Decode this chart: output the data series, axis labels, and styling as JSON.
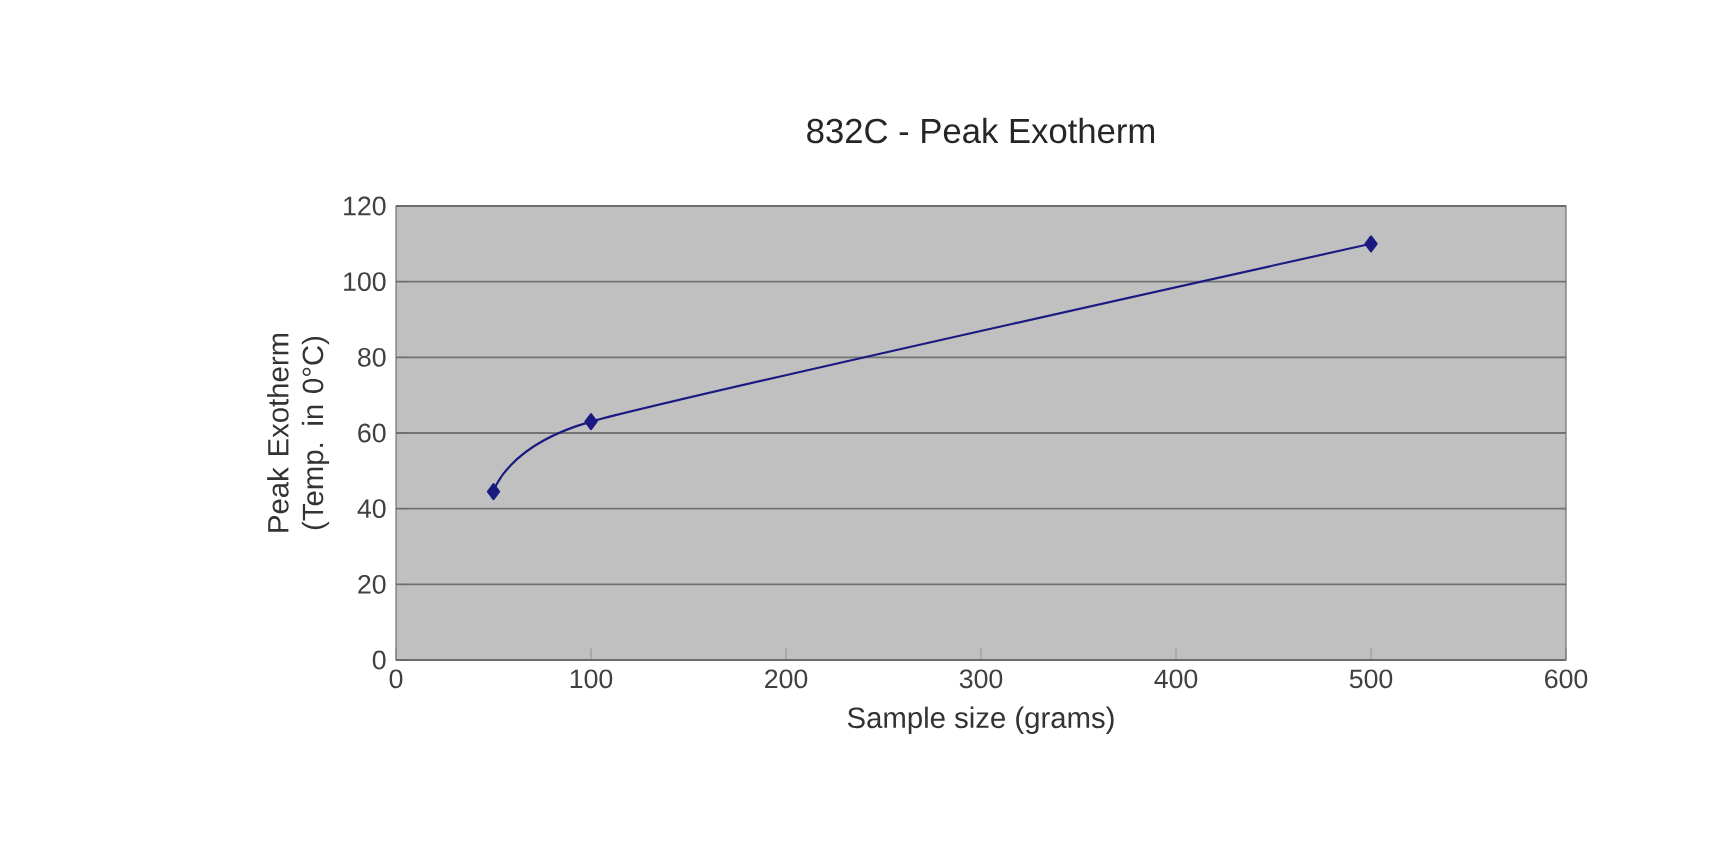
{
  "chart_data": {
    "type": "line",
    "title": "832C - Peak Exotherm",
    "xlabel": "Sample size (grams)",
    "ylabel": "Peak Exotherm (Temp. in 0°C)",
    "x": [
      50,
      100,
      500
    ],
    "series": [
      {
        "color": "#1a1a80",
        "values": [
          44.5,
          63,
          110
        ]
      }
    ],
    "xlim": [
      0,
      600
    ],
    "xticks": [
      0,
      100,
      200,
      300,
      400,
      500,
      600
    ],
    "ylim": [
      0,
      120
    ],
    "yticks": [
      0,
      20,
      40,
      60,
      80,
      100,
      120
    ],
    "grid": "y",
    "marker": "diamond",
    "line_style": "solid"
  }
}
